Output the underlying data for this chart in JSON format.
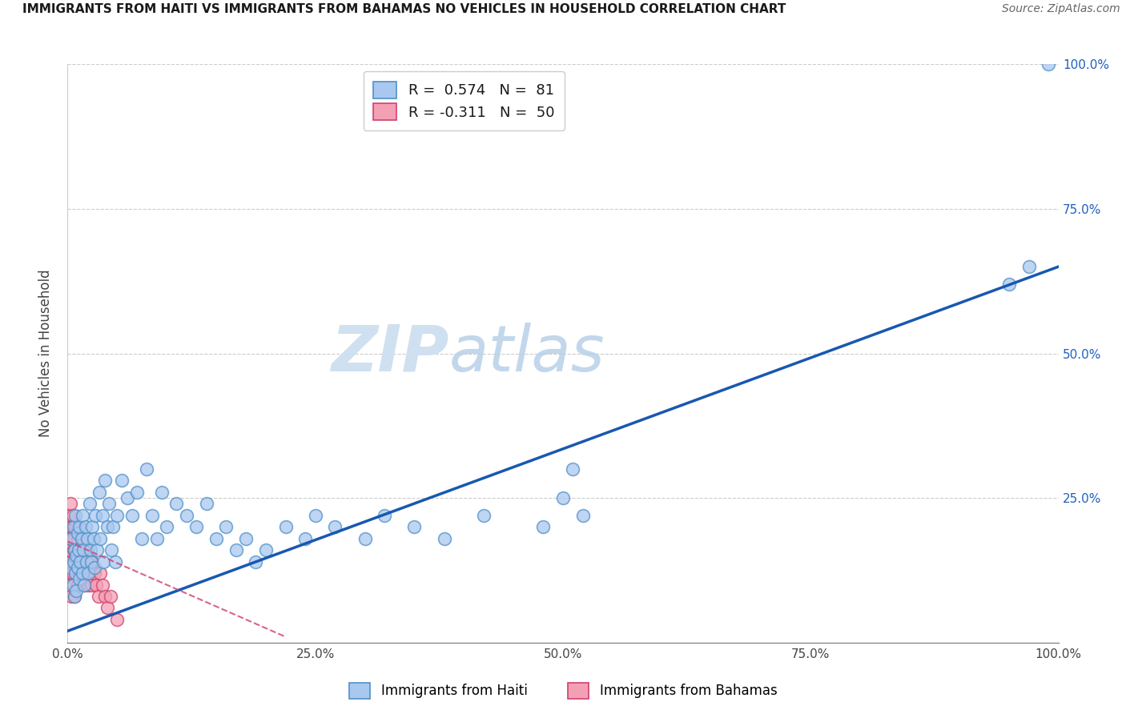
{
  "title": "IMMIGRANTS FROM HAITI VS IMMIGRANTS FROM BAHAMAS NO VEHICLES IN HOUSEHOLD CORRELATION CHART",
  "source": "Source: ZipAtlas.com",
  "ylabel": "No Vehicles in Household",
  "legend_label1": "Immigrants from Haiti",
  "legend_label2": "Immigrants from Bahamas",
  "R1": 0.574,
  "N1": 81,
  "R2": -0.311,
  "N2": 50,
  "color_haiti": "#a8c8f0",
  "color_haiti_edge": "#5090c8",
  "color_bahamas": "#f4a0b4",
  "color_bahamas_edge": "#d04070",
  "color_haiti_line": "#1858b0",
  "color_bahamas_line": "#d04878",
  "xlim": [
    0.0,
    1.0
  ],
  "ylim": [
    0.0,
    1.0
  ],
  "haiti_x": [
    0.003,
    0.004,
    0.005,
    0.006,
    0.006,
    0.007,
    0.007,
    0.008,
    0.008,
    0.009,
    0.009,
    0.01,
    0.01,
    0.011,
    0.012,
    0.012,
    0.013,
    0.014,
    0.015,
    0.015,
    0.016,
    0.017,
    0.018,
    0.019,
    0.02,
    0.021,
    0.022,
    0.023,
    0.024,
    0.025,
    0.026,
    0.027,
    0.028,
    0.03,
    0.032,
    0.033,
    0.035,
    0.036,
    0.038,
    0.04,
    0.042,
    0.044,
    0.046,
    0.048,
    0.05,
    0.055,
    0.06,
    0.065,
    0.07,
    0.075,
    0.08,
    0.085,
    0.09,
    0.095,
    0.1,
    0.11,
    0.12,
    0.13,
    0.14,
    0.15,
    0.16,
    0.17,
    0.18,
    0.19,
    0.2,
    0.22,
    0.24,
    0.25,
    0.27,
    0.3,
    0.32,
    0.35,
    0.38,
    0.42,
    0.48,
    0.5,
    0.51,
    0.52,
    0.95,
    0.97,
    0.99
  ],
  "haiti_y": [
    0.13,
    0.18,
    0.1,
    0.14,
    0.2,
    0.08,
    0.16,
    0.12,
    0.22,
    0.15,
    0.09,
    0.19,
    0.13,
    0.16,
    0.11,
    0.2,
    0.14,
    0.18,
    0.12,
    0.22,
    0.16,
    0.1,
    0.2,
    0.14,
    0.18,
    0.12,
    0.24,
    0.16,
    0.14,
    0.2,
    0.18,
    0.13,
    0.22,
    0.16,
    0.26,
    0.18,
    0.22,
    0.14,
    0.28,
    0.2,
    0.24,
    0.16,
    0.2,
    0.14,
    0.22,
    0.28,
    0.25,
    0.22,
    0.26,
    0.18,
    0.3,
    0.22,
    0.18,
    0.26,
    0.2,
    0.24,
    0.22,
    0.2,
    0.24,
    0.18,
    0.2,
    0.16,
    0.18,
    0.14,
    0.16,
    0.2,
    0.18,
    0.22,
    0.2,
    0.18,
    0.22,
    0.2,
    0.18,
    0.22,
    0.2,
    0.25,
    0.3,
    0.22,
    0.62,
    0.65,
    1.0
  ],
  "bahamas_x": [
    0.001,
    0.001,
    0.002,
    0.002,
    0.002,
    0.003,
    0.003,
    0.003,
    0.004,
    0.004,
    0.004,
    0.005,
    0.005,
    0.005,
    0.006,
    0.006,
    0.006,
    0.007,
    0.007,
    0.007,
    0.008,
    0.008,
    0.009,
    0.009,
    0.01,
    0.01,
    0.011,
    0.012,
    0.013,
    0.014,
    0.015,
    0.016,
    0.017,
    0.018,
    0.019,
    0.02,
    0.021,
    0.022,
    0.023,
    0.024,
    0.025,
    0.027,
    0.029,
    0.031,
    0.033,
    0.035,
    0.038,
    0.04,
    0.043,
    0.05
  ],
  "bahamas_y": [
    0.2,
    0.14,
    0.22,
    0.16,
    0.1,
    0.18,
    0.12,
    0.24,
    0.14,
    0.2,
    0.08,
    0.18,
    0.12,
    0.22,
    0.16,
    0.1,
    0.2,
    0.14,
    0.18,
    0.08,
    0.16,
    0.12,
    0.2,
    0.14,
    0.18,
    0.1,
    0.16,
    0.14,
    0.12,
    0.18,
    0.14,
    0.16,
    0.1,
    0.14,
    0.12,
    0.16,
    0.1,
    0.14,
    0.12,
    0.1,
    0.14,
    0.12,
    0.1,
    0.08,
    0.12,
    0.1,
    0.08,
    0.06,
    0.08,
    0.04
  ],
  "haiti_trend_x": [
    0.0,
    1.0
  ],
  "haiti_trend_y": [
    0.02,
    0.65
  ],
  "bahamas_trend_x": [
    0.0,
    0.22
  ],
  "bahamas_trend_y": [
    0.175,
    0.01
  ],
  "grid_yticks": [
    0.0,
    0.25,
    0.5,
    0.75,
    1.0
  ],
  "right_tick_labels": [
    "",
    "25.0%",
    "50.0%",
    "75.0%",
    "100.0%"
  ],
  "xtick_vals": [
    0.0,
    0.25,
    0.5,
    0.75,
    1.0
  ],
  "xtick_labels": [
    "0.0%",
    "25.0%",
    "50.0%",
    "75.0%",
    "100.0%"
  ],
  "title_fontsize": 11,
  "axis_fontsize": 11,
  "legend_fontsize": 13,
  "marker_size": 130
}
